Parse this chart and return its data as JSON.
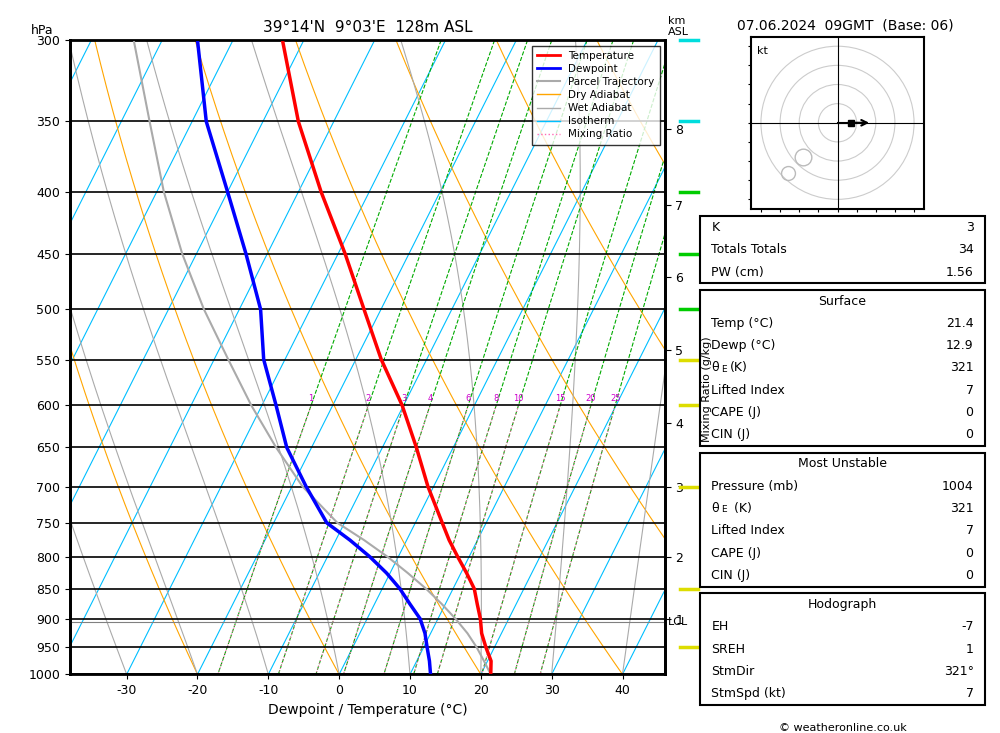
{
  "title_left": "39°14'N  9°03'E  128m ASL",
  "title_right": "07.06.2024  09GMT  (Base: 06)",
  "xlabel": "Dewpoint / Temperature (°C)",
  "ylabel_left": "hPa",
  "pressure_ticks": [
    300,
    350,
    400,
    450,
    500,
    550,
    600,
    650,
    700,
    750,
    800,
    850,
    900,
    950,
    1000
  ],
  "temp_xlim": [
    -38,
    46
  ],
  "temp_xticks": [
    -30,
    -20,
    -10,
    0,
    10,
    20,
    30,
    40
  ],
  "skew_factor": 45,
  "p_min": 300,
  "p_max": 1000,
  "bg_color": "#ffffff",
  "isotherm_color": "#00bfff",
  "dry_adiabat_color": "#ffa500",
  "wet_adiabat_color": "#aaaaaa",
  "mixing_ratio_color": "#00aa00",
  "mixing_ratio_dot_color": "#ff69b4",
  "temp_profile_color": "#ff0000",
  "dewp_profile_color": "#0000ff",
  "parcel_color": "#aaaaaa",
  "pressure_data": [
    1000,
    975,
    950,
    925,
    900,
    875,
    850,
    825,
    800,
    775,
    750,
    700,
    650,
    600,
    550,
    500,
    450,
    400,
    350,
    300
  ],
  "temp_data": [
    21.4,
    20.5,
    18.8,
    17.2,
    16.0,
    14.5,
    13.0,
    10.8,
    8.4,
    6.0,
    3.8,
    -0.8,
    -5.2,
    -10.2,
    -16.4,
    -22.4,
    -29.0,
    -36.8,
    -45.0,
    -53.0
  ],
  "dewp_data": [
    12.9,
    11.8,
    10.5,
    9.2,
    7.5,
    5.0,
    2.5,
    -0.5,
    -4.0,
    -8.0,
    -12.5,
    -18.0,
    -23.5,
    -28.0,
    -33.0,
    -37.0,
    -43.0,
    -50.0,
    -58.0,
    -65.0
  ],
  "parcel_data": [
    21.4,
    19.5,
    17.5,
    15.2,
    12.5,
    9.5,
    6.2,
    2.5,
    -1.5,
    -6.0,
    -11.0,
    -18.5,
    -25.0,
    -31.5,
    -38.0,
    -45.0,
    -52.0,
    -59.0,
    -66.0,
    -74.0
  ],
  "km_ticks": [
    1,
    2,
    3,
    4,
    5,
    6,
    7,
    8
  ],
  "km_pressures": [
    900,
    800,
    700,
    620,
    540,
    470,
    410,
    355
  ],
  "mixing_ratio_values": [
    1,
    2,
    3,
    4,
    6,
    8,
    10,
    15,
    20,
    25
  ],
  "lcl_pressure": 905,
  "hodograph_rings": [
    10,
    20,
    30,
    40
  ],
  "stats": {
    "K": "3",
    "Totals_Totals": "34",
    "PW_cm": "1.56",
    "Temp_C": "21.4",
    "Dewp_C": "12.9",
    "theta_e_K": "321",
    "Lifted_Index": "7",
    "CAPE_J": "0",
    "CIN_J": "0",
    "MU_Pressure_mb": "1004",
    "MU_theta_e_K": "321",
    "MU_Lifted_Index": "7",
    "MU_CAPE_J": "0",
    "MU_CIN_J": "0",
    "EH": "-7",
    "SREH": "1",
    "StmDir": "321°",
    "StmSpd_kt": "7"
  }
}
